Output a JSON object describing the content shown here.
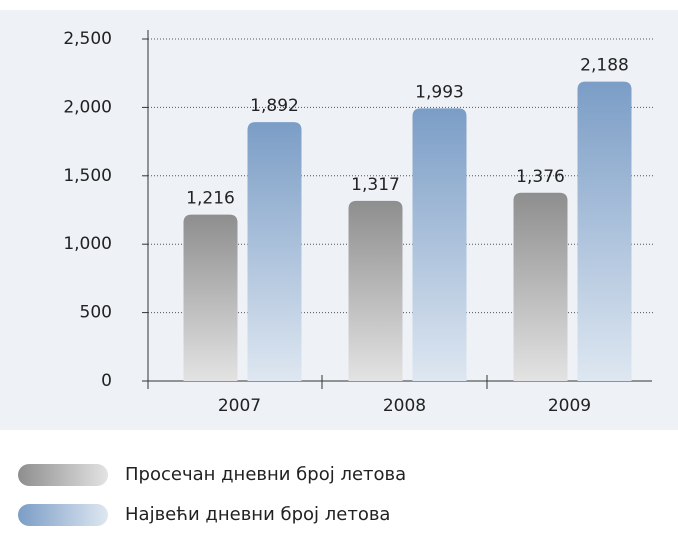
{
  "chart_data": {
    "type": "bar",
    "categories": [
      "2007",
      "2008",
      "2009"
    ],
    "series": [
      {
        "name": "Просечан дневни број летова",
        "color": "#8e8e8e",
        "values": [
          1216,
          1317,
          1376
        ],
        "value_labels": [
          "1,216",
          "1,317",
          "1,376"
        ]
      },
      {
        "name": "Највећи дневни број летова",
        "color": "#7b9dc6",
        "values": [
          1892,
          1993,
          2188
        ],
        "value_labels": [
          "1,892",
          "1,993",
          "2,188"
        ]
      }
    ],
    "ylim": [
      0,
      2500
    ],
    "yticks": [
      0,
      500,
      {
        "value": 1000,
        "label": "1,000"
      },
      {
        "value": 1500,
        "label": "1,500"
      },
      {
        "value": 2000,
        "label": "2,000"
      },
      {
        "value": 2500,
        "label": "2,500"
      }
    ],
    "grid": true
  }
}
